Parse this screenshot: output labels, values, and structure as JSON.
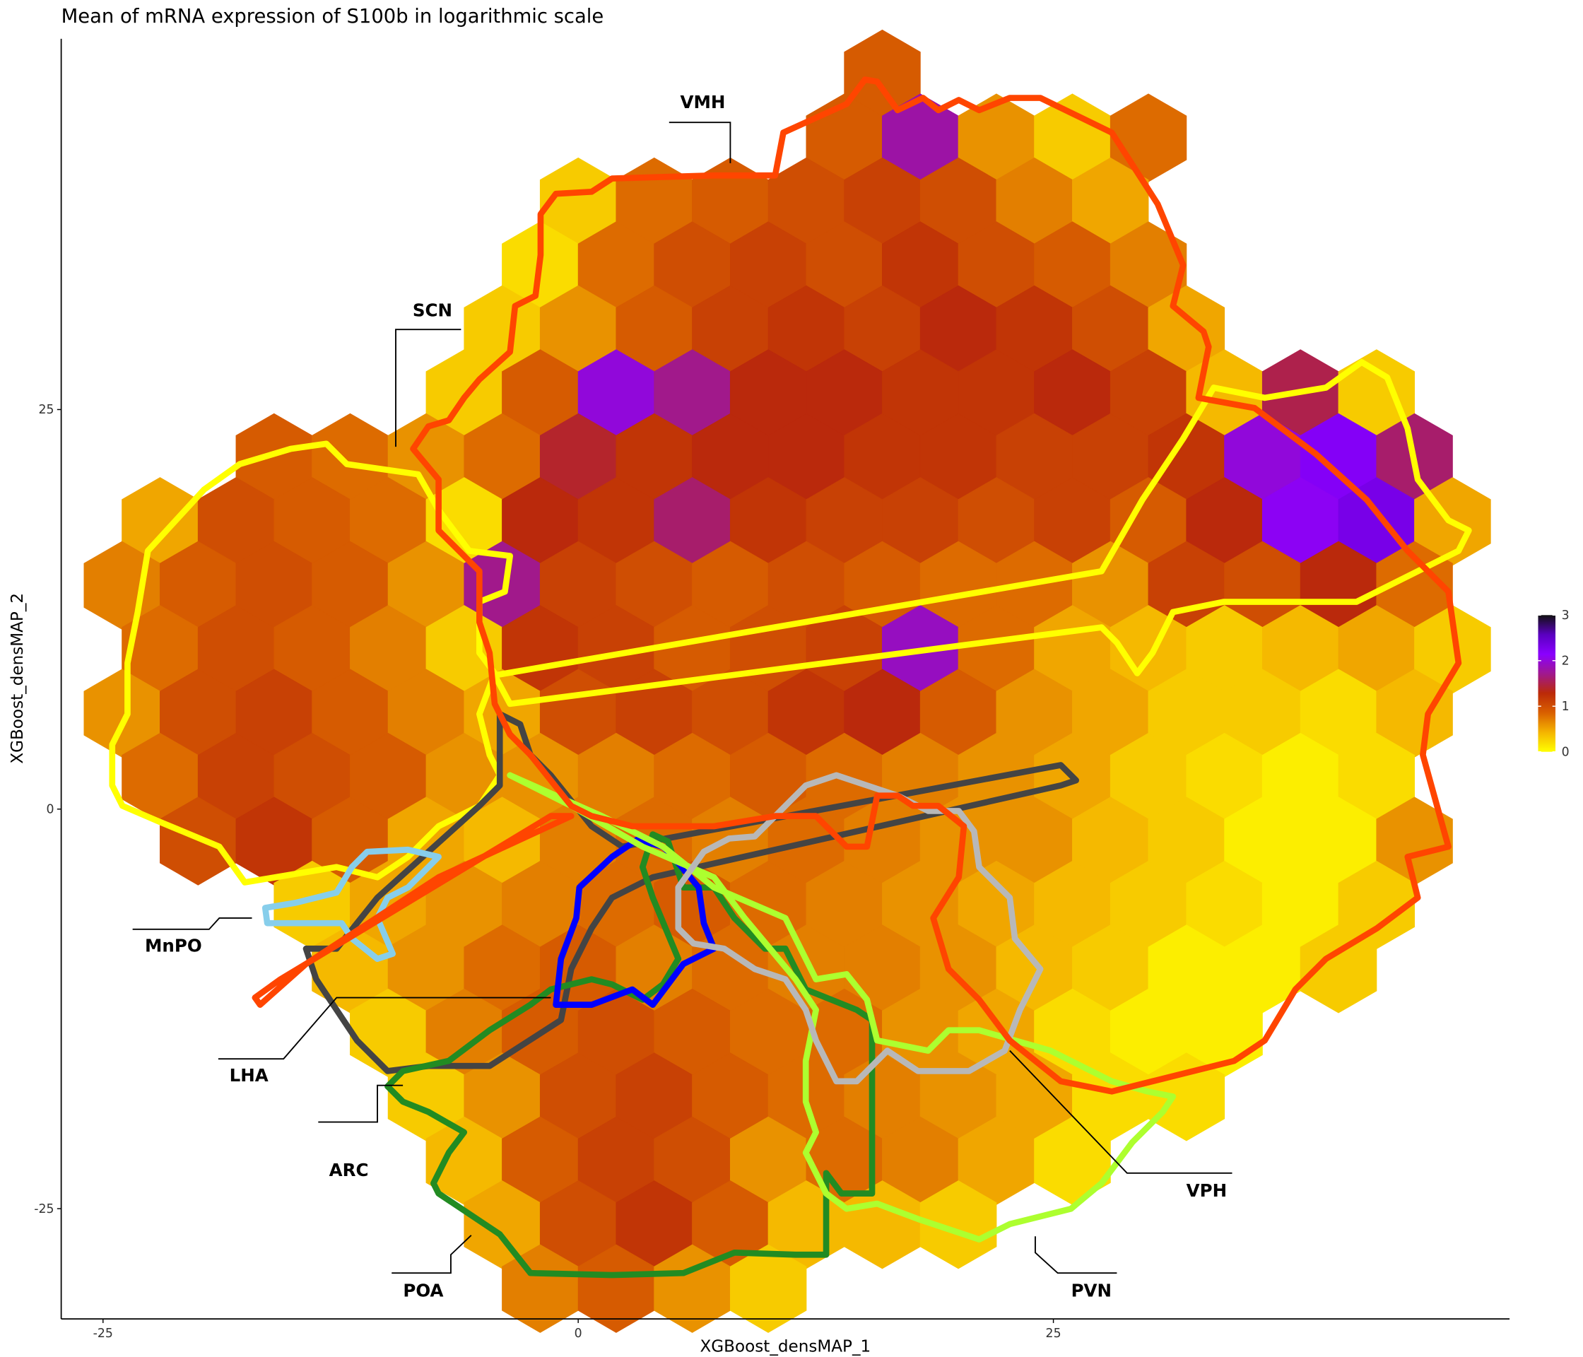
{
  "chart_data": {
    "type": "hexbin",
    "title": "Mean of mRNA expression of S100b in logarithmic scale",
    "xlabel": "XGBoost_densMAP_1",
    "ylabel": "XGBoost_densMAP_2",
    "xlim": [
      -27.2,
      49
    ],
    "ylim": [
      -31.9,
      48.2
    ],
    "xticks": [
      -25,
      0,
      25
    ],
    "yticks": [
      -25,
      0,
      25
    ],
    "grid": false,
    "hexbin": {
      "x_even": [
        -24,
        -20,
        -16,
        -12,
        -8,
        -4,
        0,
        4,
        8,
        12,
        16,
        20,
        24,
        28,
        32,
        36,
        40,
        44
      ],
      "x_odd": [
        -22,
        -18,
        -14,
        -10,
        -6,
        -2,
        2,
        6,
        10,
        14,
        18,
        22,
        26,
        30,
        34,
        38,
        42,
        46
      ],
      "y": [
        46,
        42,
        38,
        34,
        30,
        26,
        22,
        18,
        14,
        10,
        6,
        2,
        -2,
        -6,
        -10,
        -14,
        -18,
        -22,
        -26,
        -30
      ],
      "values": [
        [
          null,
          null,
          null,
          null,
          null,
          null,
          null,
          null,
          null,
          null,
          0.9,
          null,
          null,
          null,
          null,
          null,
          null,
          null
        ],
        [
          null,
          null,
          null,
          null,
          null,
          null,
          null,
          null,
          null,
          0.9,
          1.8,
          0.6,
          0.3,
          0.8,
          null,
          null,
          null,
          null
        ],
        [
          null,
          null,
          null,
          null,
          null,
          null,
          0.3,
          0.8,
          0.9,
          1.0,
          1.1,
          1.0,
          0.7,
          0.5,
          null,
          null,
          null,
          null
        ],
        [
          null,
          null,
          null,
          null,
          null,
          0.2,
          0.8,
          1.0,
          1.1,
          1.0,
          1.2,
          1.0,
          0.9,
          0.7,
          null,
          null,
          null,
          null
        ],
        [
          null,
          null,
          null,
          null,
          null,
          0.3,
          0.6,
          0.9,
          1.1,
          1.2,
          1.1,
          1.3,
          1.2,
          1.0,
          0.5,
          null,
          null,
          null
        ],
        [
          null,
          null,
          null,
          null,
          0.3,
          0.9,
          2.0,
          1.7,
          1.3,
          1.3,
          1.2,
          1.2,
          1.3,
          1.1,
          0.4,
          1.5,
          0.3,
          null
        ],
        [
          null,
          null,
          0.9,
          0.8,
          0.6,
          0.8,
          1.4,
          1.2,
          1.3,
          1.3,
          1.2,
          1.2,
          1.1,
          1.1,
          1.2,
          2.0,
          2.2,
          1.6
        ],
        [
          0.5,
          1.0,
          0.9,
          0.8,
          0.2,
          1.3,
          1.2,
          1.6,
          1.2,
          1.1,
          1.1,
          1.0,
          1.1,
          0.9,
          1.3,
          2.1,
          2.3,
          0.5
        ],
        [
          0.7,
          0.9,
          1.0,
          0.9,
          0.6,
          1.7,
          1.1,
          1.0,
          0.9,
          1.0,
          0.9,
          0.8,
          0.8,
          0.6,
          1.1,
          1.0,
          1.3,
          0.8
        ],
        [
          0.8,
          1.0,
          0.9,
          0.7,
          0.3,
          1.2,
          1.1,
          0.9,
          1.0,
          1.1,
          1.9,
          0.8,
          0.5,
          0.4,
          0.3,
          0.4,
          0.5,
          0.3
        ],
        [
          0.6,
          1.0,
          1.1,
          0.9,
          0.7,
          0.5,
          1.0,
          1.1,
          1.0,
          1.2,
          1.3,
          0.9,
          0.6,
          0.5,
          0.3,
          0.3,
          0.2,
          0.4
        ],
        [
          0.8,
          1.1,
          1.0,
          0.9,
          0.6,
          0.6,
          0.7,
          0.8,
          0.9,
          0.8,
          0.7,
          0.6,
          0.5,
          0.3,
          0.2,
          0.1,
          0.2,
          null
        ],
        [
          null,
          1.0,
          1.2,
          0.9,
          0.5,
          0.4,
          0.7,
          0.8,
          0.7,
          0.8,
          0.7,
          0.6,
          0.6,
          0.4,
          0.3,
          0.1,
          0.1,
          0.6
        ],
        [
          null,
          null,
          0.3,
          0.5,
          0.6,
          0.7,
          0.8,
          0.9,
          0.8,
          0.7,
          0.6,
          0.5,
          0.4,
          0.3,
          0.2,
          0.1,
          0.3,
          null
        ],
        [
          null,
          null,
          null,
          0.4,
          0.6,
          0.8,
          0.9,
          0.7,
          0.8,
          0.7,
          0.7,
          0.6,
          0.4,
          0.3,
          0.1,
          0.1,
          0.3,
          null
        ],
        [
          null,
          null,
          null,
          0.3,
          0.7,
          0.9,
          1.0,
          0.9,
          0.8,
          0.8,
          0.6,
          0.5,
          0.2,
          0.1,
          0.1,
          null,
          null,
          null
        ],
        [
          null,
          null,
          null,
          null,
          0.3,
          0.6,
          1.0,
          1.1,
          0.9,
          0.8,
          0.7,
          0.6,
          0.5,
          0.2,
          0.2,
          null,
          null,
          null
        ],
        [
          null,
          null,
          null,
          null,
          0.4,
          0.9,
          1.1,
          1.0,
          0.6,
          0.8,
          0.7,
          0.5,
          0.2,
          null,
          null,
          null,
          null,
          null
        ],
        [
          null,
          null,
          null,
          null,
          null,
          0.5,
          1.0,
          1.2,
          0.9,
          0.4,
          0.4,
          0.3,
          null,
          null,
          null,
          null,
          null,
          null
        ],
        [
          null,
          null,
          null,
          null,
          null,
          0.7,
          0.9,
          0.6,
          0.3,
          null,
          null,
          null,
          null,
          null,
          null,
          null,
          null,
          null
        ]
      ]
    },
    "colorbar": {
      "lim": [
        0,
        3
      ],
      "ticks": [
        0,
        1,
        2,
        3
      ],
      "colors": [
        "#ffff00",
        "#f4b400",
        "#d96000",
        "#bb2a08",
        "#a0188f",
        "#8a00ff",
        "#5a00c0",
        "#111111"
      ]
    },
    "annotations": [
      "VMH",
      "SCN",
      "MnPO",
      "LHA",
      "ARC",
      "POA",
      "PVN",
      "VPH"
    ]
  }
}
